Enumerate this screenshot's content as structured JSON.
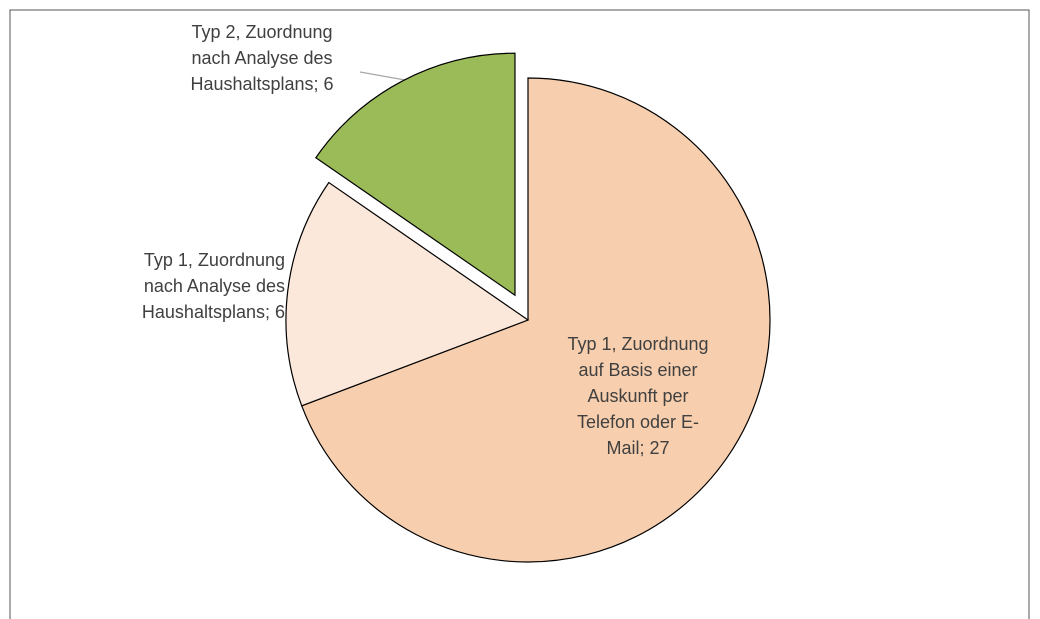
{
  "chart_data": {
    "type": "pie",
    "values": [
      27,
      6,
      6
    ],
    "value_labels": [
      "Typ 1, Zuordnung auf Basis einer Auskunft per Telefon oder E-Mail; 27",
      "Typ 1, Zuordnung nach Analyse des Haushaltsplans; 6",
      "Typ 2, Zuordnung nach Analyse des Haushaltsplans; 6"
    ],
    "colors": [
      "#f8cfae",
      "#fce8da",
      "#9bbb59"
    ],
    "exploded": [
      false,
      false,
      true
    ]
  }
}
